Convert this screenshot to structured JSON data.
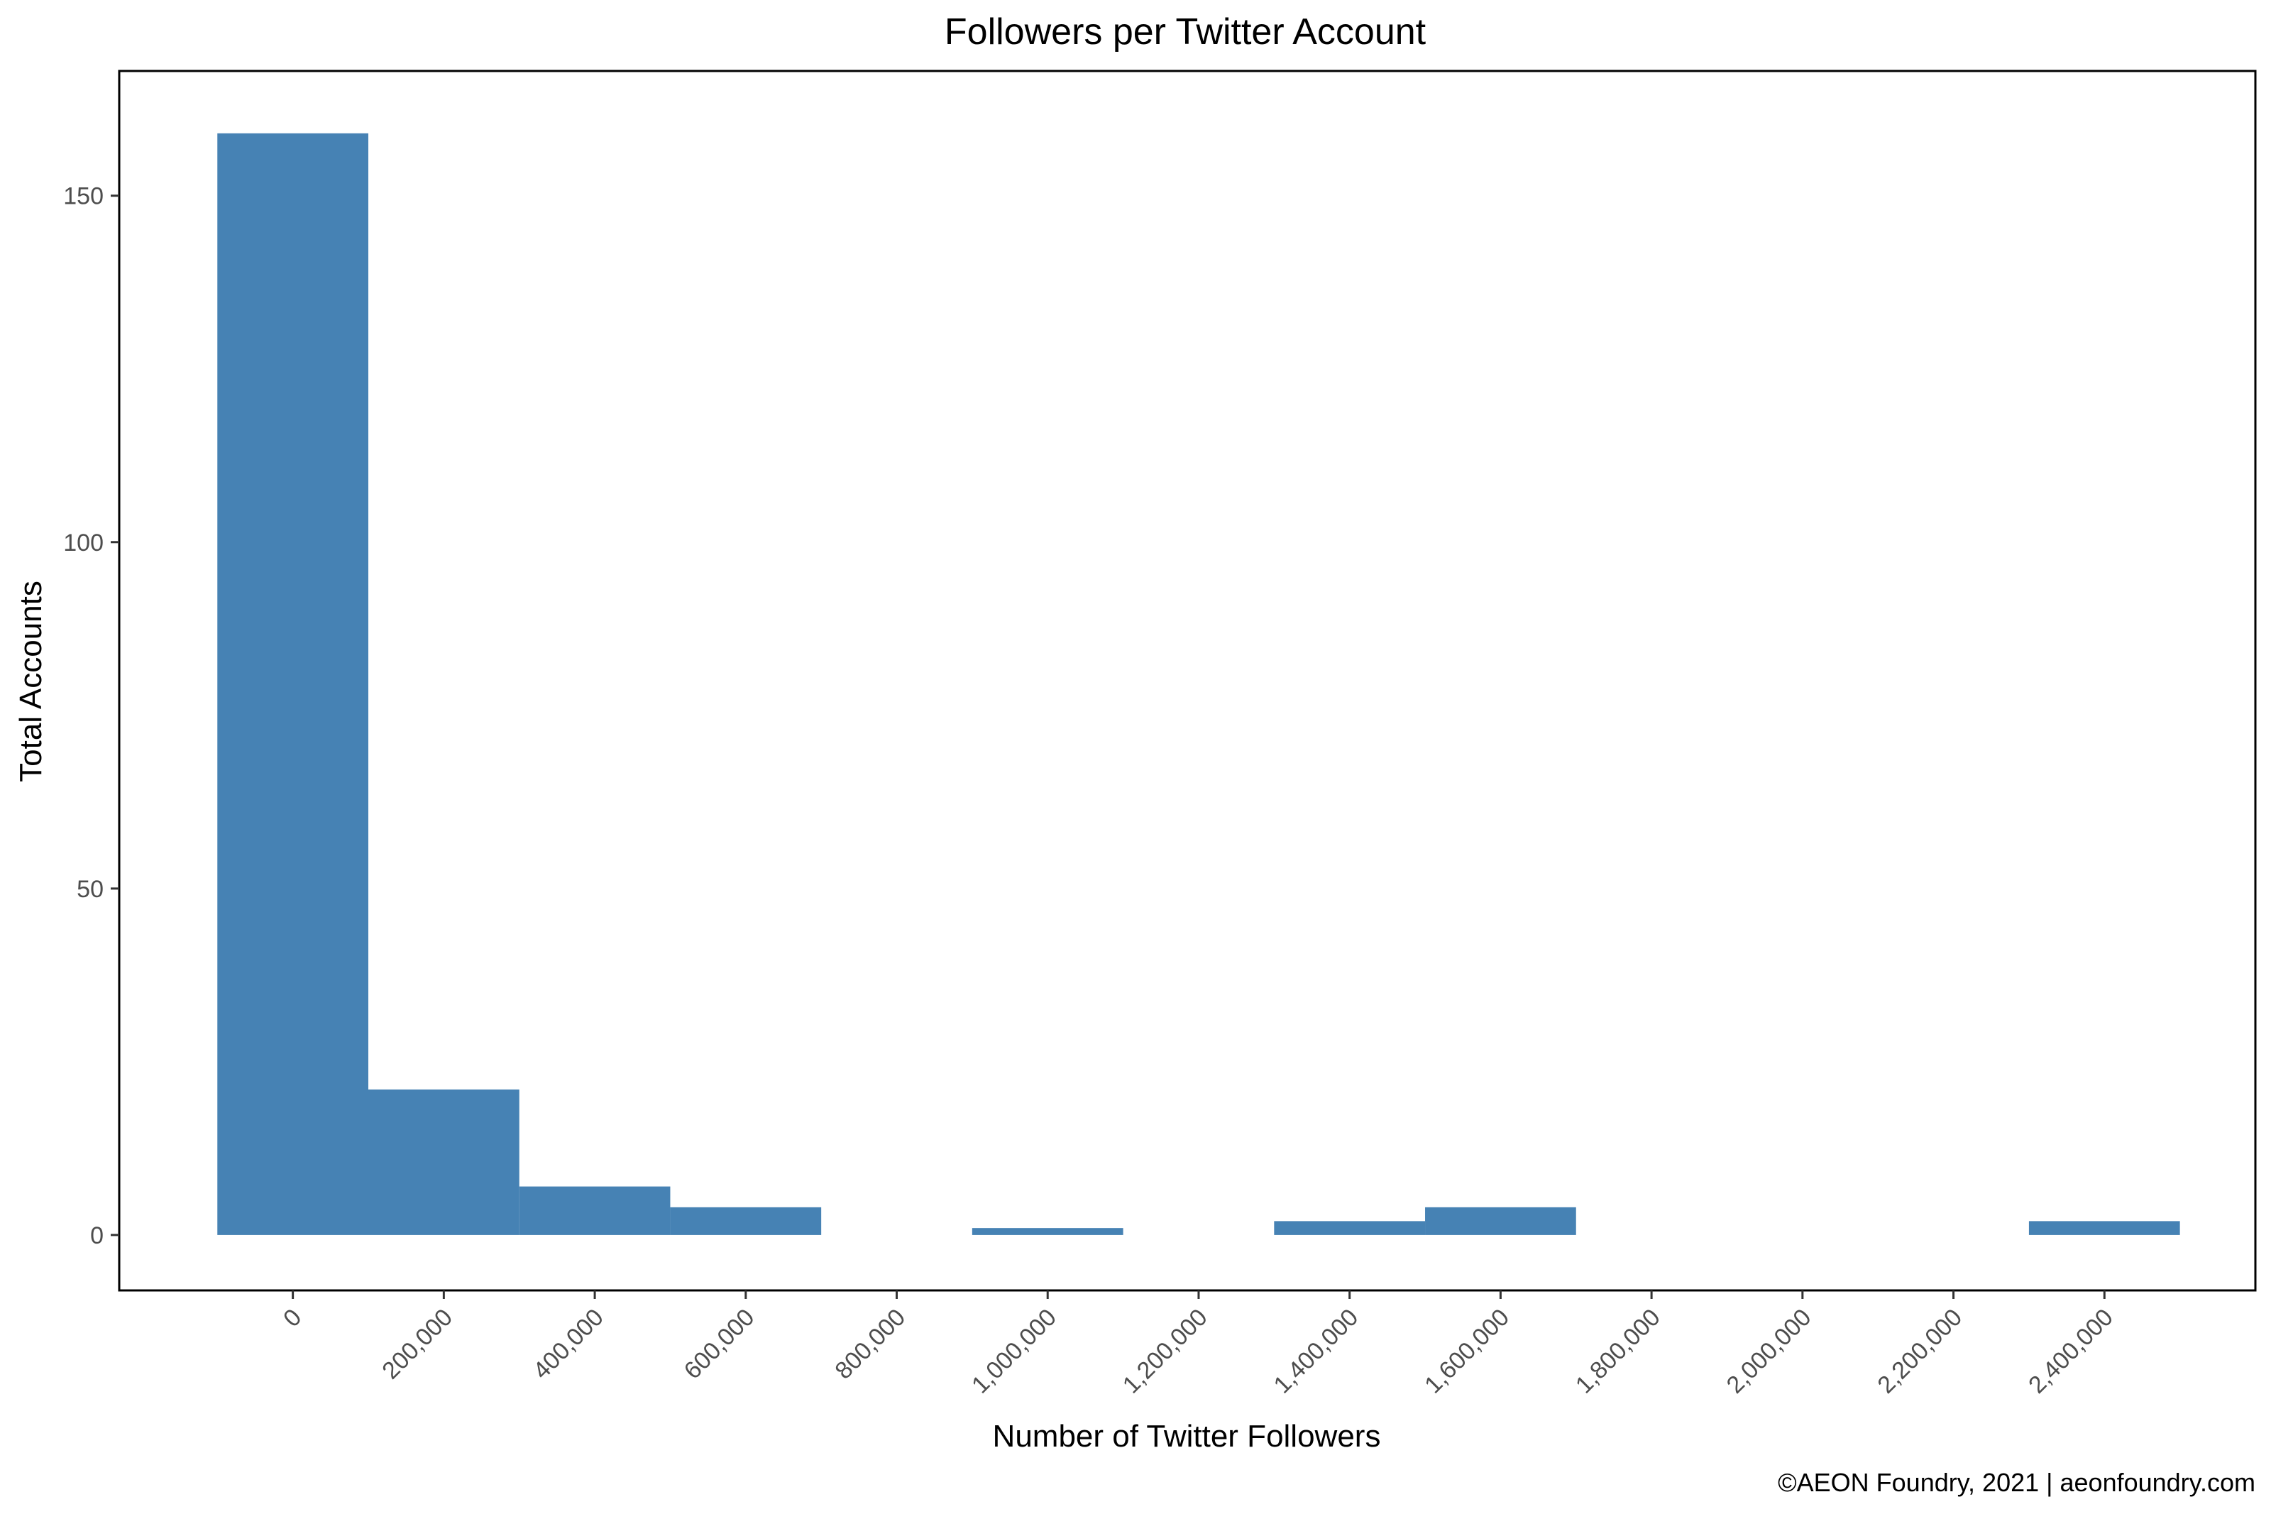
{
  "chart_data": {
    "type": "bar",
    "title": "Followers per Twitter Account",
    "xlabel": "Number of Twitter Followers",
    "ylabel": "Total Accounts",
    "caption": "©AEON Foundry, 2021 | aeonfoundry.com",
    "bar_color": "#4682b4",
    "bin_width": 200000,
    "bins": [
      {
        "x": 0,
        "count": 159
      },
      {
        "x": 200000,
        "count": 21
      },
      {
        "x": 400000,
        "count": 7
      },
      {
        "x": 600000,
        "count": 4
      },
      {
        "x": 800000,
        "count": 0
      },
      {
        "x": 1000000,
        "count": 1
      },
      {
        "x": 1200000,
        "count": 0
      },
      {
        "x": 1400000,
        "count": 2
      },
      {
        "x": 1600000,
        "count": 4
      },
      {
        "x": 1800000,
        "count": 0
      },
      {
        "x": 2000000,
        "count": 0
      },
      {
        "x": 2200000,
        "count": 0
      },
      {
        "x": 2400000,
        "count": 2
      }
    ],
    "xlim": [
      -230000,
      2600000
    ],
    "ylim": [
      -8,
      168
    ],
    "x_ticks": [
      0,
      200000,
      400000,
      600000,
      800000,
      1000000,
      1200000,
      1400000,
      1600000,
      1800000,
      2000000,
      2200000,
      2400000
    ],
    "x_tick_labels": [
      "0",
      "200,000",
      "400,000",
      "600,000",
      "800,000",
      "1,000,000",
      "1,200,000",
      "1,400,000",
      "1,600,000",
      "1,800,000",
      "2,000,000",
      "2,200,000",
      "2,400,000"
    ],
    "y_ticks": [
      0,
      50,
      100,
      150
    ],
    "y_tick_labels": [
      "0",
      "50",
      "100",
      "150"
    ],
    "grid": false,
    "legend": "none"
  }
}
